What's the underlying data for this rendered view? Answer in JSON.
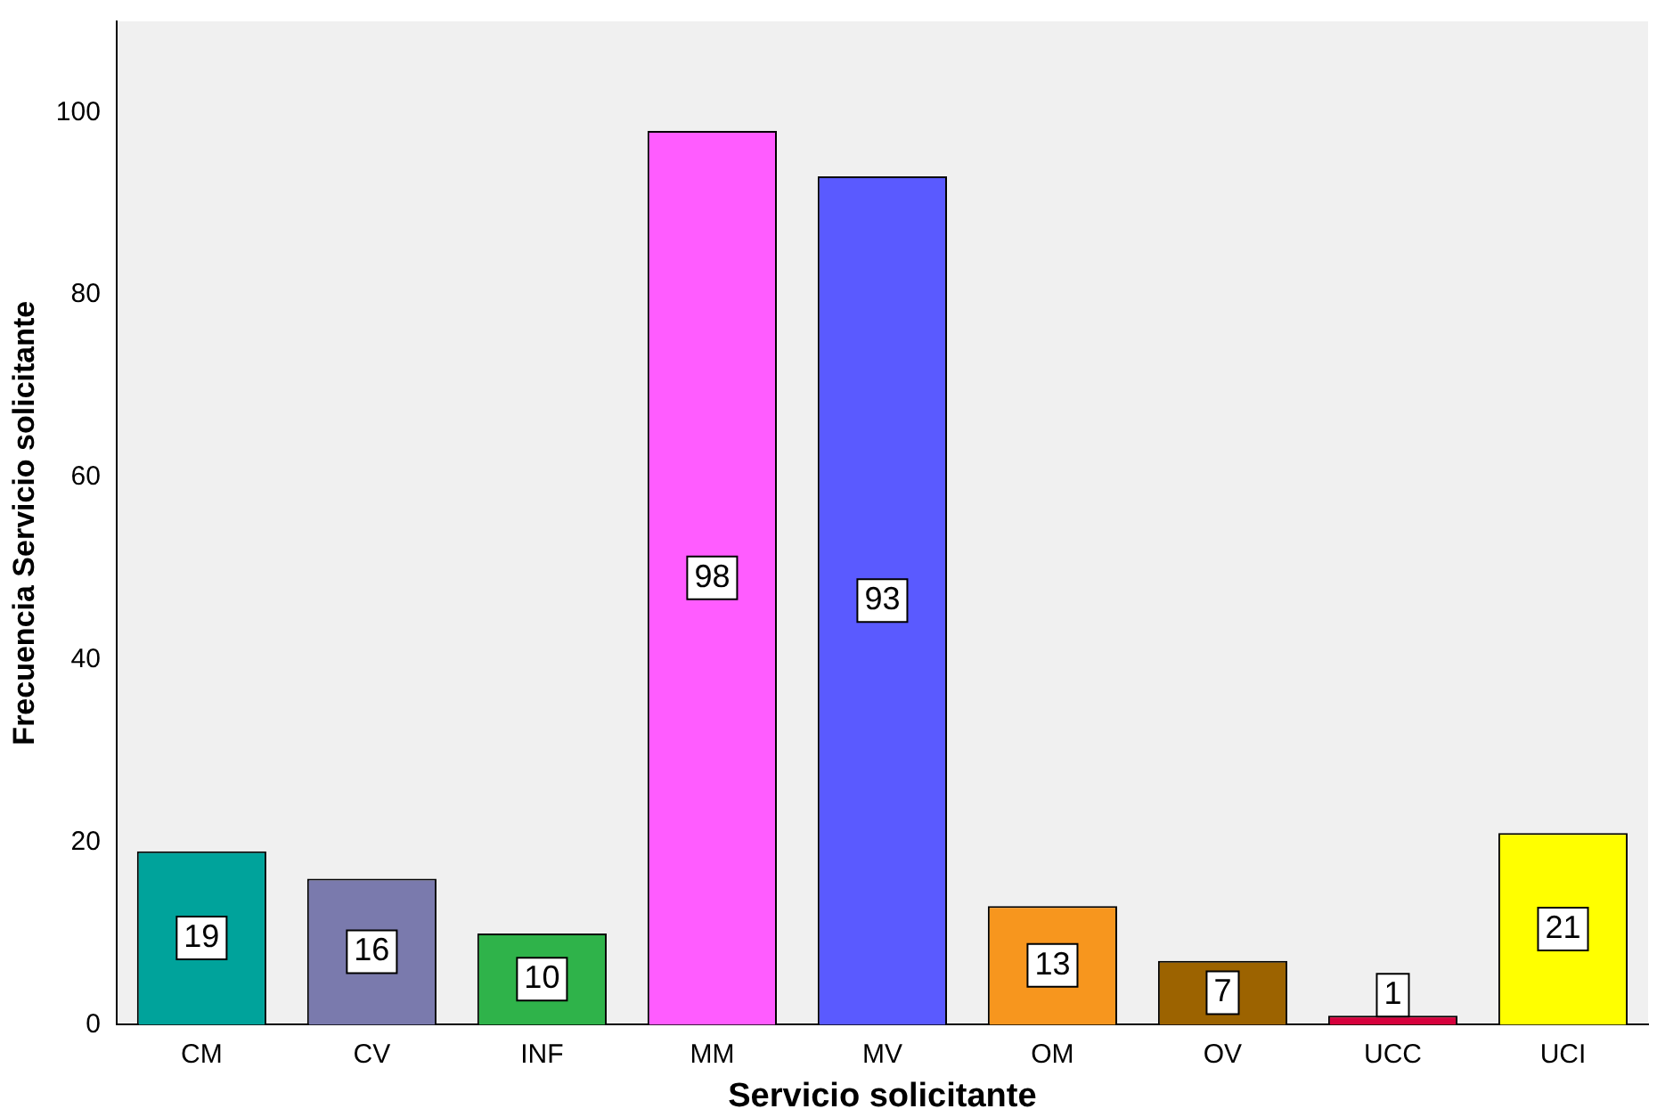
{
  "chart_data": {
    "type": "bar",
    "xlabel": "Servicio solicitante",
    "ylabel": "Frecuencia Servicio solicitante",
    "categories": [
      "CM",
      "CV",
      "INF",
      "MM",
      "MV",
      "OM",
      "OV",
      "UCC",
      "UCI"
    ],
    "values": [
      19,
      16,
      10,
      98,
      93,
      13,
      7,
      1,
      21
    ],
    "colors": [
      "#00a39b",
      "#7a7aad",
      "#2fb34a",
      "#ff5cff",
      "#5a5aff",
      "#f7961e",
      "#9c6300",
      "#d6003c",
      "#ffff00"
    ],
    "ylim": [
      0,
      110
    ],
    "yticks": [
      0,
      20,
      40,
      60,
      80,
      100
    ],
    "grid": false,
    "legend": false,
    "data_labels": true
  }
}
